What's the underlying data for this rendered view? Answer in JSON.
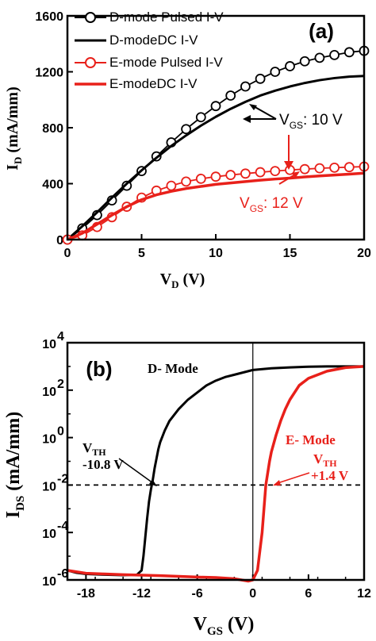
{
  "chart_data": [
    {
      "type": "line",
      "panel_label": "(a)",
      "xlabel_main": "V",
      "xlabel_sub": "D",
      "xlabel_unit": " (V)",
      "ylabel_main": "I",
      "ylabel_sub": "D",
      "ylabel_unit": " (mA/mm)",
      "xlim": [
        0,
        20
      ],
      "ylim": [
        0,
        1600
      ],
      "xticks": [
        0,
        5,
        10,
        15,
        20
      ],
      "yticks": [
        0,
        400,
        800,
        1200,
        1600
      ],
      "legend_position": "top-left",
      "series": [
        {
          "name": "D-mode Pulsed I-V",
          "color": "#000000",
          "marker": "circle",
          "x": [
            0,
            1,
            2,
            3,
            4,
            5,
            6,
            7,
            8,
            9,
            10,
            11,
            12,
            13,
            14,
            15,
            16,
            17,
            18,
            19,
            20
          ],
          "y": [
            0,
            80,
            175,
            280,
            385,
            490,
            595,
            695,
            790,
            875,
            955,
            1030,
            1095,
            1150,
            1200,
            1240,
            1275,
            1300,
            1320,
            1340,
            1350
          ]
        },
        {
          "name": "D-modeDC I-V",
          "color": "#000000",
          "marker": "none",
          "x": [
            0,
            1,
            2,
            3,
            4,
            5,
            6,
            7,
            8,
            9,
            10,
            11,
            12,
            13,
            14,
            15,
            16,
            17,
            18,
            19,
            20
          ],
          "y": [
            0,
            95,
            195,
            300,
            400,
            495,
            585,
            670,
            745,
            815,
            878,
            935,
            985,
            1030,
            1065,
            1095,
            1120,
            1140,
            1155,
            1165,
            1170
          ]
        },
        {
          "name": "E-mode Pulsed I-V",
          "color": "#e8201a",
          "marker": "circle",
          "x": [
            0,
            1,
            2,
            3,
            4,
            5,
            6,
            7,
            8,
            9,
            10,
            11,
            12,
            13,
            14,
            15,
            16,
            17,
            18,
            19,
            20
          ],
          "y": [
            0,
            30,
            90,
            160,
            235,
            300,
            350,
            385,
            415,
            435,
            450,
            462,
            472,
            482,
            490,
            498,
            504,
            510,
            514,
            518,
            522
          ]
        },
        {
          "name": "E-modeDC I-V",
          "color": "#e8201a",
          "marker": "none",
          "x": [
            0,
            1,
            2,
            3,
            4,
            5,
            6,
            7,
            8,
            9,
            10,
            11,
            12,
            13,
            14,
            15,
            16,
            17,
            18,
            19,
            20
          ],
          "y": [
            0,
            45,
            110,
            175,
            235,
            285,
            320,
            345,
            365,
            380,
            395,
            405,
            415,
            425,
            433,
            440,
            448,
            455,
            462,
            468,
            475
          ]
        }
      ],
      "annotations": [
        {
          "main": "V",
          "sub": "GS",
          "rest": ": 10 V",
          "color": "#000000"
        },
        {
          "main": "V",
          "sub": "GS",
          "rest": ": 12 V",
          "color": "#e8201a"
        }
      ]
    },
    {
      "type": "line",
      "panel_label": "(b)",
      "xlabel_main": "V",
      "xlabel_sub": "GS",
      "xlabel_unit": " (V)",
      "ylabel_main": "I",
      "ylabel_sub": "DS",
      "ylabel_unit": " (mA/mm)",
      "yscale": "log",
      "xlim": [
        -20,
        12
      ],
      "ylim_exp": [
        -6,
        4
      ],
      "xticks": [
        -18,
        -12,
        -6,
        0,
        6,
        12
      ],
      "ytick_exponents": [
        -6,
        -4,
        -2,
        0,
        2,
        4
      ],
      "ytick_base": "10",
      "threshold_line_exp": -2,
      "vertical_line_x": 0,
      "series": [
        {
          "name": "D- Mode",
          "color": "#000000",
          "x": [
            -20,
            -19,
            -18,
            -16,
            -14,
            -12.5,
            -12,
            -11.8,
            -11.6,
            -11.4,
            -11.2,
            -11,
            -10.8,
            -10.6,
            -10.4,
            -10.2,
            -10,
            -9.5,
            -9,
            -8,
            -7,
            -6,
            -5,
            -4,
            -3,
            -2,
            -1,
            0,
            2,
            4,
            6,
            8,
            10,
            12
          ],
          "log10_y": [
            -5.6,
            -5.7,
            -5.75,
            -5.78,
            -5.8,
            -5.78,
            -5.6,
            -5.0,
            -4.2,
            -3.4,
            -2.7,
            -2.2,
            -1.8,
            -1.3,
            -0.9,
            -0.5,
            -0.2,
            0.3,
            0.7,
            1.2,
            1.6,
            1.9,
            2.2,
            2.4,
            2.55,
            2.65,
            2.75,
            2.85,
            2.92,
            2.96,
            2.99,
            3.0,
            3.0,
            3.0
          ]
        },
        {
          "name": "E- Mode",
          "color": "#e8201a",
          "x": [
            -20,
            -18,
            -16,
            -14,
            -12,
            -10,
            -8,
            -6,
            -4,
            -2,
            -0.5,
            0,
            0.5,
            1,
            1.2,
            1.4,
            1.6,
            1.8,
            2,
            2.5,
            3,
            3.5,
            4,
            5,
            6,
            8,
            10,
            12
          ],
          "log10_y": [
            -5.6,
            -5.72,
            -5.75,
            -5.78,
            -5.8,
            -5.82,
            -5.85,
            -5.88,
            -5.9,
            -5.95,
            -6.05,
            -6.0,
            -5.6,
            -4.0,
            -3.0,
            -2.0,
            -1.5,
            -1.0,
            -0.6,
            0.1,
            0.7,
            1.2,
            1.6,
            2.2,
            2.5,
            2.8,
            2.95,
            3.0
          ]
        }
      ],
      "annotations": [
        {
          "main": "V",
          "sub": "TH",
          "value": "-10.8 V",
          "color": "#000000"
        },
        {
          "main": "V",
          "sub": "TH",
          "value": "+1.4 V",
          "color": "#e8201a"
        }
      ]
    }
  ]
}
